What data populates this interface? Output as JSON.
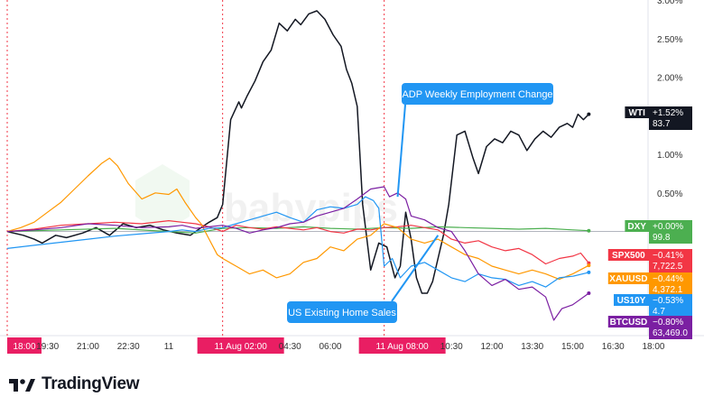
{
  "brand": {
    "name": "TradingView",
    "logo_icon": "tradingview-logo-icon"
  },
  "watermark": {
    "text": "babypips"
  },
  "chart_data": {
    "type": "line",
    "y_unit": "percent change",
    "ylim": [
      -1.35,
      3.0
    ],
    "y_ticks": [
      {
        "value": 3.0,
        "label": "3.00%"
      },
      {
        "value": 2.5,
        "label": "2.50%"
      },
      {
        "value": 2.0,
        "label": "2.00%"
      },
      {
        "value": 1.5,
        "label": "1.50%"
      },
      {
        "value": 1.0,
        "label": "1.00%"
      },
      {
        "value": 0.5,
        "label": "0.50%"
      }
    ],
    "x_range": [
      0,
      23.8
    ],
    "x_ticks": [
      {
        "x": 0,
        "label": "18:00",
        "highlight": true
      },
      {
        "x": 1.5,
        "label": "19:30"
      },
      {
        "x": 3.0,
        "label": "21:00"
      },
      {
        "x": 4.5,
        "label": "22:30"
      },
      {
        "x": 6.0,
        "label": "11"
      },
      {
        "x": 8.0,
        "label": "11 Aug  02:00",
        "highlight": true
      },
      {
        "x": 10.5,
        "label": "04:30"
      },
      {
        "x": 12.0,
        "label": "06:00"
      },
      {
        "x": 14.0,
        "label": "11 Aug  08:00",
        "highlight": true
      },
      {
        "x": 16.5,
        "label": "10:30"
      },
      {
        "x": 18.0,
        "label": "12:00"
      },
      {
        "x": 19.5,
        "label": "13:30"
      },
      {
        "x": 21.0,
        "label": "15:00"
      },
      {
        "x": 22.5,
        "label": "16:30"
      },
      {
        "x": 24.0,
        "label": "18:00"
      }
    ],
    "session_breaks": [
      0,
      8.0,
      14.0
    ],
    "zero_line": 0,
    "annotations": [
      {
        "text": "ADP Weekly Employment Change",
        "point": {
          "x": 14.5,
          "y": 0.45
        },
        "color": "#2196f3"
      },
      {
        "text": "US Existing Home Sales",
        "point": {
          "x": 16.0,
          "y": -0.05
        },
        "color": "#2196f3"
      }
    ],
    "series": [
      {
        "name": "WTI",
        "color": "#131722",
        "change": "+1.52%",
        "last": "83.7",
        "label_bg": "#131722",
        "x": [
          0,
          0.6,
          1.0,
          1.3,
          1.8,
          2.2,
          2.8,
          3.3,
          3.8,
          4.3,
          4.8,
          5.3,
          5.8,
          6.3,
          6.8,
          7.2,
          7.5,
          7.8,
          8.0,
          8.3,
          8.6,
          8.7,
          8.9,
          9.2,
          9.5,
          9.8,
          10.1,
          10.4,
          10.7,
          10.9,
          11.2,
          11.5,
          11.8,
          12.1,
          12.4,
          12.6,
          12.8,
          13.0,
          13.2,
          13.5,
          13.8,
          14.1,
          14.4,
          14.6,
          14.8,
          15.0,
          15.2,
          15.4,
          15.6,
          15.8,
          16.0,
          16.2,
          16.4,
          16.7,
          17.0,
          17.3,
          17.5,
          17.8,
          18.1,
          18.4,
          18.7,
          19.0,
          19.3,
          19.6,
          19.9,
          20.2,
          20.5,
          20.8,
          21.0,
          21.2,
          21.4,
          21.6
        ],
        "y": [
          0,
          -0.05,
          -0.1,
          -0.15,
          -0.05,
          -0.08,
          -0.02,
          0.05,
          -0.05,
          0.1,
          0.05,
          0.08,
          0.02,
          -0.02,
          -0.05,
          0.05,
          0.12,
          0.18,
          0.35,
          1.45,
          1.68,
          1.6,
          1.75,
          1.95,
          2.2,
          2.35,
          2.7,
          2.6,
          2.75,
          2.68,
          2.82,
          2.86,
          2.75,
          2.55,
          2.4,
          2.1,
          1.92,
          1.62,
          0.35,
          -0.5,
          -0.15,
          -0.2,
          -0.6,
          -0.45,
          0.25,
          -0.1,
          -0.6,
          -0.8,
          -0.8,
          -0.65,
          -0.35,
          -0.05,
          0.35,
          1.25,
          1.3,
          0.95,
          0.75,
          1.1,
          1.2,
          1.15,
          1.3,
          1.25,
          1.05,
          1.2,
          1.3,
          1.22,
          1.35,
          1.4,
          1.35,
          1.52,
          1.45,
          1.52
        ]
      },
      {
        "name": "DXY",
        "color": "#4caf50",
        "change": "+0.00%",
        "last": "99.8",
        "label_bg": "#4caf50",
        "x": [
          0,
          2,
          4,
          6,
          7,
          8,
          9,
          10,
          11,
          12,
          13,
          14,
          15,
          16,
          17,
          18,
          19,
          20,
          21,
          21.6
        ],
        "y": [
          0,
          0.02,
          0.04,
          0.0,
          -0.02,
          0.04,
          0.05,
          0.04,
          0.06,
          0.04,
          0.03,
          0.05,
          0.04,
          0.06,
          0.05,
          0.04,
          0.03,
          0.04,
          0.02,
          0.01
        ]
      },
      {
        "name": "SPX500",
        "color": "#f23645",
        "change": "−0.41%",
        "last": "7,722.5",
        "label_bg": "#f23645",
        "x": [
          0,
          1,
          2,
          3,
          4,
          5,
          6,
          6.5,
          7,
          7.5,
          8,
          8.5,
          9,
          9.5,
          10,
          10.5,
          11,
          11.5,
          12,
          12.5,
          13,
          13.5,
          14,
          14.5,
          15,
          15.5,
          16,
          16.5,
          17,
          17.5,
          18,
          18.5,
          19,
          19.5,
          20,
          20.5,
          21,
          21.3,
          21.6
        ],
        "y": [
          0,
          0.03,
          0.08,
          0.1,
          0.12,
          0.1,
          0.14,
          0.12,
          0.1,
          0.06,
          0.0,
          0.08,
          0.05,
          0.03,
          0.06,
          0.04,
          0.02,
          0.05,
          0.0,
          -0.02,
          0.03,
          0.02,
          0.05,
          0.06,
          0.08,
          0.05,
          0.02,
          -0.1,
          -0.15,
          -0.12,
          -0.2,
          -0.25,
          -0.22,
          -0.3,
          -0.42,
          -0.35,
          -0.32,
          -0.28,
          -0.41
        ]
      },
      {
        "name": "XAUUSD",
        "color": "#ff9800",
        "change": "−0.44%",
        "last": "4,372.1",
        "label_bg": "#ff9800",
        "x": [
          0,
          0.5,
          1,
          1.5,
          2,
          2.5,
          3,
          3.5,
          3.8,
          4.1,
          4.5,
          5,
          5.5,
          6,
          6.3,
          6.6,
          7,
          7.2,
          7.5,
          7.8,
          8,
          8.5,
          9,
          9.5,
          10,
          10.5,
          11,
          11.5,
          12,
          12.5,
          13,
          13.5,
          14,
          14.5,
          15,
          15.5,
          16,
          16.5,
          17,
          17.5,
          18,
          18.5,
          19,
          19.5,
          20,
          20.5,
          21,
          21.6
        ],
        "y": [
          0,
          0.05,
          0.12,
          0.25,
          0.38,
          0.55,
          0.72,
          0.88,
          0.95,
          0.85,
          0.62,
          0.42,
          0.5,
          0.48,
          0.55,
          0.38,
          0.18,
          0.1,
          -0.1,
          -0.3,
          -0.35,
          -0.45,
          -0.55,
          -0.5,
          -0.6,
          -0.55,
          -0.4,
          -0.35,
          -0.2,
          -0.25,
          -0.1,
          -0.05,
          0.1,
          0.05,
          -0.1,
          -0.15,
          -0.1,
          -0.2,
          -0.3,
          -0.35,
          -0.45,
          -0.5,
          -0.55,
          -0.5,
          -0.55,
          -0.62,
          -0.55,
          -0.44
        ]
      },
      {
        "name": "US10Y",
        "color": "#2196f3",
        "change": "−0.53%",
        "last": "4.7",
        "label_bg": "#2196f3",
        "x": [
          0,
          1,
          2,
          3,
          4,
          5,
          6,
          6.5,
          7,
          7.5,
          8,
          8.5,
          9,
          9.5,
          10,
          10.5,
          11,
          11.5,
          12,
          12.5,
          13,
          13.3,
          13.6,
          13.8,
          14,
          14.3,
          14.6,
          15,
          15.5,
          16,
          16.5,
          17,
          17.5,
          18,
          18.5,
          19,
          19.5,
          20,
          20.5,
          21,
          21.6
        ],
        "y": [
          -0.22,
          -0.18,
          -0.14,
          -0.1,
          -0.06,
          -0.03,
          0.0,
          0.02,
          0.0,
          0.04,
          0.05,
          0.1,
          0.15,
          0.2,
          0.25,
          0.18,
          0.12,
          0.28,
          0.32,
          0.3,
          0.35,
          0.45,
          0.4,
          0.3,
          -0.45,
          -0.35,
          -0.6,
          -0.45,
          -0.4,
          -0.5,
          -0.6,
          -0.65,
          -0.55,
          -0.6,
          -0.62,
          -0.7,
          -0.65,
          -0.72,
          -0.6,
          -0.58,
          -0.53
        ]
      },
      {
        "name": "BTCUSD",
        "color": "#7b1fa2",
        "change": "−0.80%",
        "last": "63,469.0",
        "label_bg": "#7b1fa2",
        "x": [
          0,
          1,
          2,
          3,
          4,
          5,
          6,
          6.5,
          7,
          7.5,
          8,
          8.5,
          9,
          9.5,
          10,
          10.5,
          11,
          11.5,
          12,
          12.5,
          13,
          13.5,
          14,
          14.2,
          14.5,
          14.8,
          15,
          15.5,
          16,
          16.5,
          17,
          17.5,
          18,
          18.5,
          19,
          19.5,
          20,
          20.3,
          20.6,
          21,
          21.6
        ],
        "y": [
          0,
          0.02,
          0.05,
          0.1,
          0.08,
          0.05,
          0.06,
          0.08,
          0.04,
          0.06,
          0.08,
          0.04,
          -0.02,
          0.02,
          0.05,
          0.1,
          0.12,
          0.2,
          0.25,
          0.3,
          0.42,
          0.55,
          0.58,
          0.45,
          0.5,
          0.42,
          0.2,
          0.15,
          0.05,
          0.0,
          -0.25,
          -0.55,
          -0.7,
          -0.62,
          -0.75,
          -0.72,
          -0.85,
          -1.15,
          -1.0,
          -0.95,
          -0.8
        ]
      }
    ]
  }
}
